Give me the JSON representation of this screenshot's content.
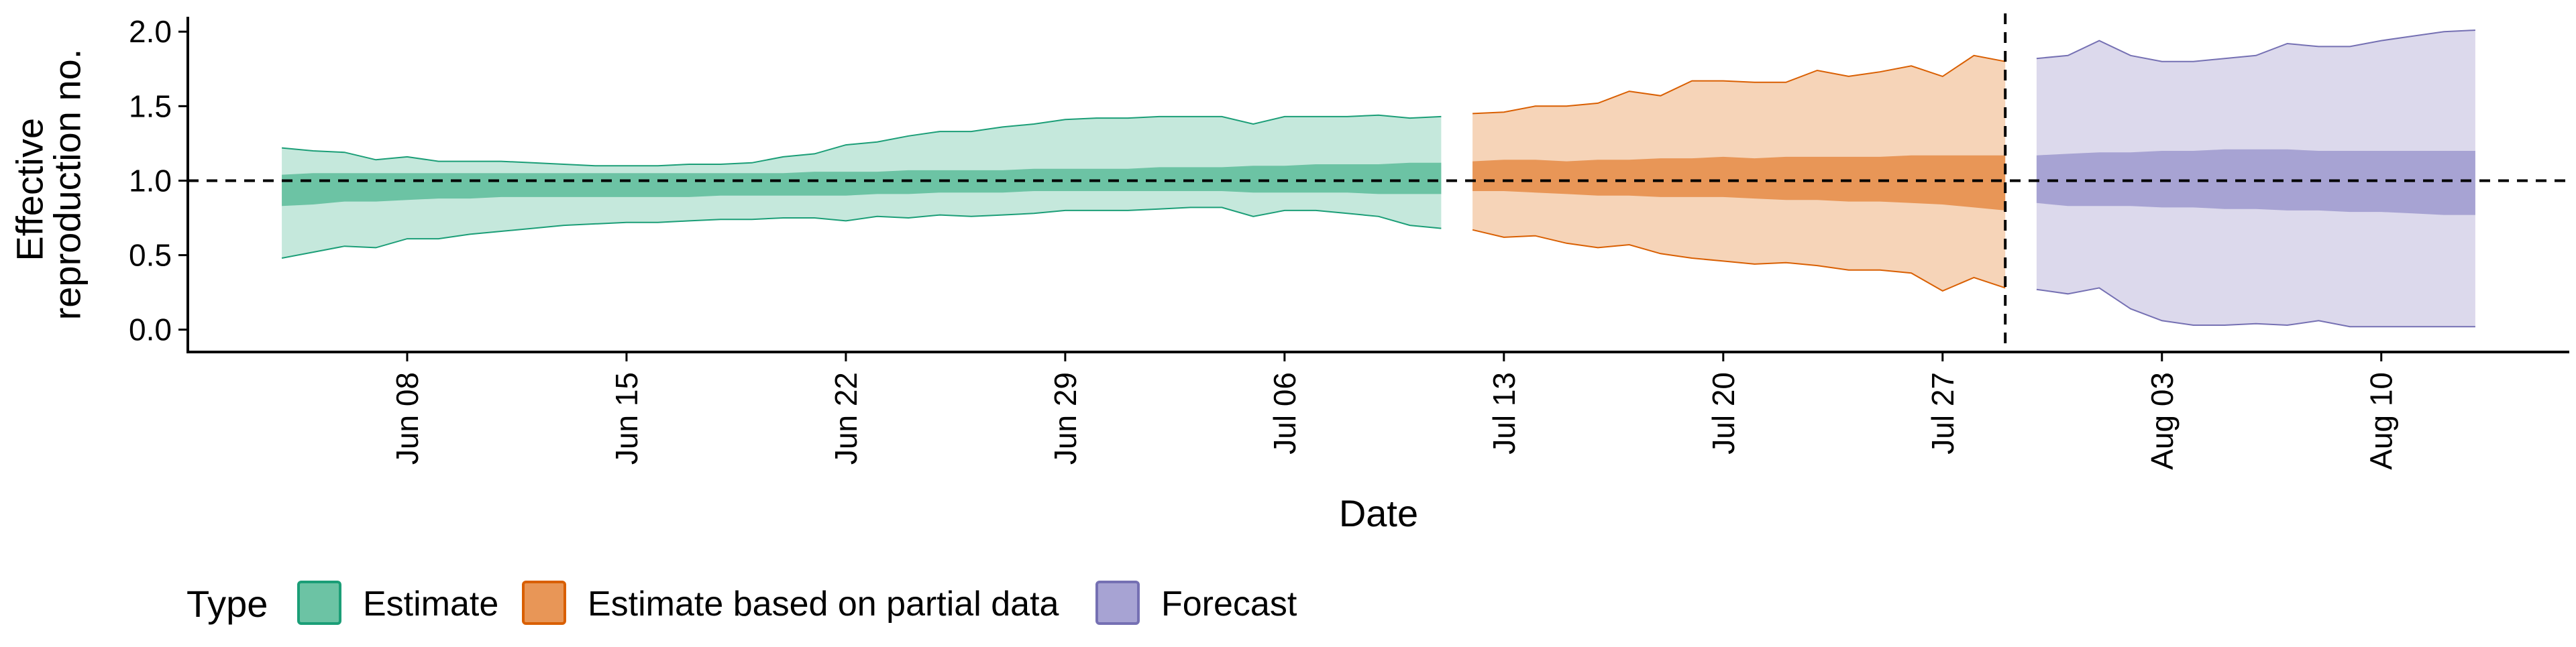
{
  "chart_data": {
    "type": "area",
    "xlabel": "Date",
    "ylabel_lines": [
      "Effective",
      "reproduction no."
    ],
    "ylim": [
      -0.15,
      2.1
    ],
    "yticks": [
      0.0,
      0.5,
      1.0,
      1.5,
      2.0
    ],
    "ytick_labels": [
      "0.0",
      "0.5",
      "1.0",
      "1.5",
      "2.0"
    ],
    "xlim": [
      "2020-06-01",
      "2020-08-16"
    ],
    "xticks": [
      "2020-06-08",
      "2020-06-15",
      "2020-06-22",
      "2020-06-29",
      "2020-07-06",
      "2020-07-13",
      "2020-07-20",
      "2020-07-27",
      "2020-08-03",
      "2020-08-10"
    ],
    "xtick_labels": [
      "Jun 08",
      "Jun 15",
      "Jun 22",
      "Jun 29",
      "Jul 06",
      "Jul 13",
      "Jul 20",
      "Jul 27",
      "Aug 03",
      "Aug 10"
    ],
    "reference_line_y": 1.0,
    "reference_line_x": "2020-07-29",
    "legend": {
      "title": "Type",
      "position": "bottom",
      "items": [
        "Estimate",
        "Estimate based on partial data",
        "Forecast"
      ]
    },
    "series": [
      {
        "name": "Estimate",
        "outer_color": "#c5e8dc",
        "inner_color": "#6cc3a4",
        "line_color": "#1b9e77",
        "x": [
          "2020-06-04",
          "2020-06-05",
          "2020-06-06",
          "2020-06-07",
          "2020-06-08",
          "2020-06-09",
          "2020-06-10",
          "2020-06-11",
          "2020-06-12",
          "2020-06-13",
          "2020-06-14",
          "2020-06-15",
          "2020-06-16",
          "2020-06-17",
          "2020-06-18",
          "2020-06-19",
          "2020-06-20",
          "2020-06-21",
          "2020-06-22",
          "2020-06-23",
          "2020-06-24",
          "2020-06-25",
          "2020-06-26",
          "2020-06-27",
          "2020-06-28",
          "2020-06-29",
          "2020-06-30",
          "2020-07-01",
          "2020-07-02",
          "2020-07-03",
          "2020-07-04",
          "2020-07-05",
          "2020-07-06",
          "2020-07-07",
          "2020-07-08",
          "2020-07-09",
          "2020-07-10",
          "2020-07-11"
        ],
        "lower90": [
          0.48,
          0.52,
          0.56,
          0.55,
          0.61,
          0.61,
          0.64,
          0.66,
          0.68,
          0.7,
          0.71,
          0.72,
          0.72,
          0.73,
          0.74,
          0.74,
          0.75,
          0.75,
          0.73,
          0.76,
          0.75,
          0.77,
          0.76,
          0.77,
          0.78,
          0.8,
          0.8,
          0.8,
          0.81,
          0.82,
          0.82,
          0.76,
          0.8,
          0.8,
          0.78,
          0.76,
          0.7,
          0.68
        ],
        "upper90": [
          1.22,
          1.2,
          1.19,
          1.14,
          1.16,
          1.13,
          1.13,
          1.13,
          1.12,
          1.11,
          1.1,
          1.1,
          1.1,
          1.11,
          1.11,
          1.12,
          1.16,
          1.18,
          1.24,
          1.26,
          1.3,
          1.33,
          1.33,
          1.36,
          1.38,
          1.41,
          1.42,
          1.42,
          1.43,
          1.43,
          1.43,
          1.38,
          1.43,
          1.43,
          1.43,
          1.44,
          1.42,
          1.43
        ],
        "lower50": [
          0.83,
          0.84,
          0.86,
          0.86,
          0.87,
          0.88,
          0.88,
          0.89,
          0.89,
          0.89,
          0.89,
          0.89,
          0.89,
          0.89,
          0.9,
          0.9,
          0.9,
          0.9,
          0.9,
          0.91,
          0.91,
          0.92,
          0.92,
          0.92,
          0.93,
          0.93,
          0.93,
          0.93,
          0.93,
          0.93,
          0.93,
          0.92,
          0.92,
          0.92,
          0.92,
          0.91,
          0.91,
          0.91
        ],
        "upper50": [
          1.04,
          1.05,
          1.05,
          1.05,
          1.05,
          1.05,
          1.05,
          1.05,
          1.05,
          1.05,
          1.05,
          1.05,
          1.05,
          1.05,
          1.05,
          1.05,
          1.05,
          1.06,
          1.06,
          1.06,
          1.07,
          1.07,
          1.07,
          1.07,
          1.08,
          1.08,
          1.08,
          1.08,
          1.09,
          1.09,
          1.09,
          1.1,
          1.1,
          1.11,
          1.11,
          1.11,
          1.12,
          1.12
        ]
      },
      {
        "name": "Estimate based on partial data",
        "outer_color": "#f6d4b8",
        "inner_color": "#e89657",
        "line_color": "#d95f02",
        "x": [
          "2020-07-12",
          "2020-07-13",
          "2020-07-14",
          "2020-07-15",
          "2020-07-16",
          "2020-07-17",
          "2020-07-18",
          "2020-07-19",
          "2020-07-20",
          "2020-07-21",
          "2020-07-22",
          "2020-07-23",
          "2020-07-24",
          "2020-07-25",
          "2020-07-26",
          "2020-07-27",
          "2020-07-28",
          "2020-07-29"
        ],
        "lower90": [
          0.67,
          0.62,
          0.63,
          0.58,
          0.55,
          0.57,
          0.51,
          0.48,
          0.46,
          0.44,
          0.45,
          0.43,
          0.4,
          0.4,
          0.38,
          0.26,
          0.35,
          0.28
        ],
        "upper90": [
          1.45,
          1.46,
          1.5,
          1.5,
          1.52,
          1.6,
          1.57,
          1.67,
          1.67,
          1.66,
          1.66,
          1.74,
          1.7,
          1.73,
          1.77,
          1.7,
          1.84,
          1.8
        ],
        "lower50": [
          0.93,
          0.93,
          0.92,
          0.91,
          0.9,
          0.9,
          0.89,
          0.89,
          0.89,
          0.88,
          0.87,
          0.87,
          0.86,
          0.86,
          0.85,
          0.84,
          0.82,
          0.8
        ],
        "upper50": [
          1.13,
          1.14,
          1.14,
          1.13,
          1.14,
          1.14,
          1.15,
          1.15,
          1.16,
          1.15,
          1.16,
          1.16,
          1.16,
          1.16,
          1.17,
          1.17,
          1.17,
          1.17
        ]
      },
      {
        "name": "Forecast",
        "outer_color": "#dcd9ec",
        "inner_color": "#a7a3d3",
        "line_color": "#7570b3",
        "x": [
          "2020-07-30",
          "2020-07-31",
          "2020-08-01",
          "2020-08-02",
          "2020-08-03",
          "2020-08-04",
          "2020-08-05",
          "2020-08-06",
          "2020-08-07",
          "2020-08-08",
          "2020-08-09",
          "2020-08-10",
          "2020-08-11",
          "2020-08-12",
          "2020-08-13"
        ],
        "lower90": [
          0.27,
          0.24,
          0.28,
          0.14,
          0.06,
          0.03,
          0.03,
          0.04,
          0.03,
          0.06,
          0.02,
          0.02,
          0.02,
          0.02,
          0.02
        ],
        "upper90": [
          1.82,
          1.84,
          1.94,
          1.84,
          1.8,
          1.8,
          1.82,
          1.84,
          1.92,
          1.9,
          1.9,
          1.94,
          1.97,
          2.0,
          2.01
        ],
        "lower50": [
          0.85,
          0.83,
          0.83,
          0.83,
          0.82,
          0.82,
          0.81,
          0.81,
          0.8,
          0.8,
          0.79,
          0.79,
          0.78,
          0.77,
          0.77
        ],
        "upper50": [
          1.17,
          1.18,
          1.19,
          1.19,
          1.2,
          1.2,
          1.21,
          1.21,
          1.21,
          1.2,
          1.2,
          1.2,
          1.2,
          1.2,
          1.2
        ]
      }
    ]
  }
}
